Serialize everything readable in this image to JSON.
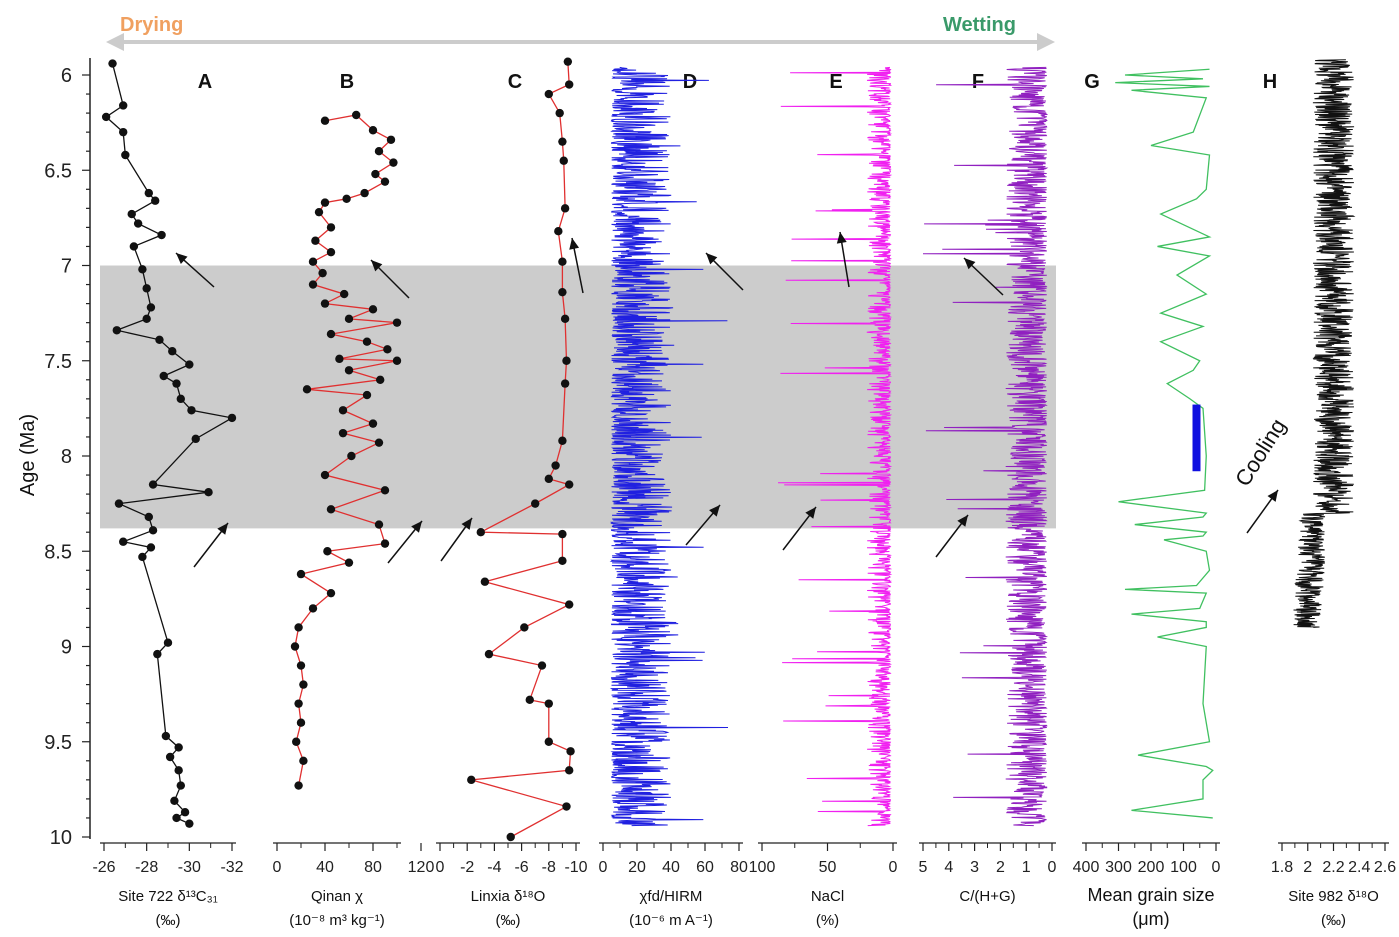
{
  "banner": {
    "left_label": "Drying",
    "right_label": "Wetting",
    "left_color": "#f0a060",
    "right_color": "#3a9a6a",
    "arrow_color": "#cccccc"
  },
  "age_axis": {
    "label": "Age (Ma)",
    "range": [
      5.9,
      10.0
    ],
    "ticks": [
      "6",
      "6.5",
      "7",
      "7.5",
      "8",
      "8.5",
      "9",
      "9.5",
      "10"
    ],
    "tick_values": [
      6,
      6.5,
      7,
      7.5,
      8,
      8.5,
      9,
      9.5,
      10
    ]
  },
  "shaded_interval": {
    "from": 7.0,
    "to": 8.38,
    "color": "#cccccc"
  },
  "chart_data": [
    {
      "id": "A",
      "type": "line",
      "letter": "A",
      "xlabel_line1": "Site 722 δ¹³C₃₁",
      "xlabel_line2": "(‰)",
      "xlim": [
        -26,
        -32
      ],
      "tick_labels": [
        "-26",
        "-28",
        "-30",
        "-32"
      ],
      "tick_values": [
        -26,
        -28,
        -30,
        -32
      ],
      "color": "#111111",
      "line_color": "#111111",
      "markers": true,
      "series": [
        {
          "x": -26.4,
          "y": 5.94
        },
        {
          "x": -26.9,
          "y": 6.16
        },
        {
          "x": -26.1,
          "y": 6.22
        },
        {
          "x": -26.9,
          "y": 6.3
        },
        {
          "x": -27.0,
          "y": 6.42
        },
        {
          "x": -28.1,
          "y": 6.62
        },
        {
          "x": -28.4,
          "y": 6.66
        },
        {
          "x": -27.3,
          "y": 6.73
        },
        {
          "x": -27.6,
          "y": 6.78
        },
        {
          "x": -28.7,
          "y": 6.84
        },
        {
          "x": -27.4,
          "y": 6.9
        },
        {
          "x": -27.8,
          "y": 7.02
        },
        {
          "x": -28.0,
          "y": 7.12
        },
        {
          "x": -28.2,
          "y": 7.22
        },
        {
          "x": -28.0,
          "y": 7.28
        },
        {
          "x": -26.6,
          "y": 7.34
        },
        {
          "x": -28.6,
          "y": 7.39
        },
        {
          "x": -29.2,
          "y": 7.45
        },
        {
          "x": -30.0,
          "y": 7.52
        },
        {
          "x": -28.8,
          "y": 7.58
        },
        {
          "x": -29.4,
          "y": 7.62
        },
        {
          "x": -29.6,
          "y": 7.7
        },
        {
          "x": -30.1,
          "y": 7.76
        },
        {
          "x": -32.0,
          "y": 7.8
        },
        {
          "x": -30.3,
          "y": 7.91
        },
        {
          "x": -28.3,
          "y": 8.15
        },
        {
          "x": -30.9,
          "y": 8.19
        },
        {
          "x": -26.7,
          "y": 8.25
        },
        {
          "x": -28.1,
          "y": 8.32
        },
        {
          "x": -28.3,
          "y": 8.39
        },
        {
          "x": -26.9,
          "y": 8.45
        },
        {
          "x": -28.2,
          "y": 8.48
        },
        {
          "x": -27.8,
          "y": 8.53
        },
        {
          "x": -29.0,
          "y": 8.98
        },
        {
          "x": -28.5,
          "y": 9.04
        },
        {
          "x": -28.9,
          "y": 9.47
        },
        {
          "x": -29.5,
          "y": 9.53
        },
        {
          "x": -29.1,
          "y": 9.58
        },
        {
          "x": -29.5,
          "y": 9.65
        },
        {
          "x": -29.6,
          "y": 9.73
        },
        {
          "x": -29.3,
          "y": 9.81
        },
        {
          "x": -29.8,
          "y": 9.87
        },
        {
          "x": -29.4,
          "y": 9.9
        },
        {
          "x": -30.0,
          "y": 9.93
        }
      ]
    },
    {
      "id": "B",
      "type": "line",
      "letter": "B",
      "xlabel_line1": "Qinan χ",
      "xlabel_line2": "(10⁻⁸ m³ kg⁻¹)",
      "xlim": [
        0,
        100
      ],
      "tick_labels": [
        "0",
        "40",
        "80",
        "120"
      ],
      "tick_values": [
        0,
        40,
        80,
        120
      ],
      "color": "#111111",
      "line_color": "#e03030",
      "markers": true,
      "series": [
        {
          "x": 40,
          "y": 6.24
        },
        {
          "x": 66,
          "y": 6.21
        },
        {
          "x": 80,
          "y": 6.29
        },
        {
          "x": 95,
          "y": 6.34
        },
        {
          "x": 85,
          "y": 6.4
        },
        {
          "x": 97,
          "y": 6.46
        },
        {
          "x": 82,
          "y": 6.52
        },
        {
          "x": 90,
          "y": 6.56
        },
        {
          "x": 73,
          "y": 6.62
        },
        {
          "x": 58,
          "y": 6.65
        },
        {
          "x": 40,
          "y": 6.67
        },
        {
          "x": 35,
          "y": 6.72
        },
        {
          "x": 45,
          "y": 6.8
        },
        {
          "x": 32,
          "y": 6.87
        },
        {
          "x": 45,
          "y": 6.93
        },
        {
          "x": 30,
          "y": 6.98
        },
        {
          "x": 38,
          "y": 7.04
        },
        {
          "x": 30,
          "y": 7.1
        },
        {
          "x": 56,
          "y": 7.15
        },
        {
          "x": 40,
          "y": 7.2
        },
        {
          "x": 80,
          "y": 7.23
        },
        {
          "x": 60,
          "y": 7.28
        },
        {
          "x": 100,
          "y": 7.3
        },
        {
          "x": 45,
          "y": 7.36
        },
        {
          "x": 75,
          "y": 7.4
        },
        {
          "x": 92,
          "y": 7.44
        },
        {
          "x": 52,
          "y": 7.49
        },
        {
          "x": 100,
          "y": 7.5
        },
        {
          "x": 60,
          "y": 7.55
        },
        {
          "x": 86,
          "y": 7.6
        },
        {
          "x": 25,
          "y": 7.65
        },
        {
          "x": 75,
          "y": 7.68
        },
        {
          "x": 55,
          "y": 7.76
        },
        {
          "x": 80,
          "y": 7.83
        },
        {
          "x": 55,
          "y": 7.88
        },
        {
          "x": 85,
          "y": 7.93
        },
        {
          "x": 62,
          "y": 8.0
        },
        {
          "x": 40,
          "y": 8.1
        },
        {
          "x": 90,
          "y": 8.18
        },
        {
          "x": 45,
          "y": 8.28
        },
        {
          "x": 85,
          "y": 8.36
        },
        {
          "x": 90,
          "y": 8.46
        },
        {
          "x": 42,
          "y": 8.5
        },
        {
          "x": 60,
          "y": 8.56
        },
        {
          "x": 20,
          "y": 8.62
        },
        {
          "x": 45,
          "y": 8.72
        },
        {
          "x": 30,
          "y": 8.8
        },
        {
          "x": 18,
          "y": 8.9
        },
        {
          "x": 15,
          "y": 9.0
        },
        {
          "x": 20,
          "y": 9.1
        },
        {
          "x": 22,
          "y": 9.2
        },
        {
          "x": 18,
          "y": 9.3
        },
        {
          "x": 20,
          "y": 9.4
        },
        {
          "x": 16,
          "y": 9.5
        },
        {
          "x": 22,
          "y": 9.6
        },
        {
          "x": 18,
          "y": 9.73
        }
      ]
    },
    {
      "id": "C",
      "type": "line",
      "letter": "C",
      "xlabel_line1": "Linxia δ¹⁸O",
      "xlabel_line2": "(‰)",
      "xlim": [
        0,
        -10
      ],
      "tick_labels": [
        "0",
        "-2",
        "-4",
        "-6",
        "-8",
        "-10"
      ],
      "tick_values": [
        0,
        -2,
        -4,
        -6,
        -8,
        -10
      ],
      "color": "#111111",
      "line_color": "#e03030",
      "markers": true,
      "series": [
        {
          "x": -9.4,
          "y": 5.93
        },
        {
          "x": -9.5,
          "y": 6.05
        },
        {
          "x": -8.0,
          "y": 6.1
        },
        {
          "x": -8.8,
          "y": 6.2
        },
        {
          "x": -9.0,
          "y": 6.35
        },
        {
          "x": -9.1,
          "y": 6.45
        },
        {
          "x": -9.2,
          "y": 6.7
        },
        {
          "x": -8.7,
          "y": 6.82
        },
        {
          "x": -9.0,
          "y": 6.98
        },
        {
          "x": -9.0,
          "y": 7.14
        },
        {
          "x": -9.2,
          "y": 7.28
        },
        {
          "x": -9.3,
          "y": 7.5
        },
        {
          "x": -9.2,
          "y": 7.62
        },
        {
          "x": -9.0,
          "y": 7.92
        },
        {
          "x": -8.5,
          "y": 8.05
        },
        {
          "x": -8.0,
          "y": 8.12
        },
        {
          "x": -9.5,
          "y": 8.15
        },
        {
          "x": -7.0,
          "y": 8.25
        },
        {
          "x": -3.0,
          "y": 8.4
        },
        {
          "x": -9.0,
          "y": 8.41
        },
        {
          "x": -9.0,
          "y": 8.55
        },
        {
          "x": -3.3,
          "y": 8.66
        },
        {
          "x": -9.5,
          "y": 8.78
        },
        {
          "x": -6.2,
          "y": 8.9
        },
        {
          "x": -3.6,
          "y": 9.04
        },
        {
          "x": -7.5,
          "y": 9.1
        },
        {
          "x": -6.6,
          "y": 9.28
        },
        {
          "x": -8.0,
          "y": 9.3
        },
        {
          "x": -8.0,
          "y": 9.5
        },
        {
          "x": -9.6,
          "y": 9.55
        },
        {
          "x": -9.5,
          "y": 9.65
        },
        {
          "x": -2.3,
          "y": 9.7
        },
        {
          "x": -9.3,
          "y": 9.84
        },
        {
          "x": -5.2,
          "y": 10.0
        }
      ]
    },
    {
      "id": "D",
      "type": "line",
      "letter": "D",
      "xlabel_line1": "χfd/HIRM",
      "xlabel_line2": "(10⁻⁶ m A⁻¹)",
      "xlim": [
        0,
        80
      ],
      "tick_labels": [
        "0",
        "20",
        "40",
        "60",
        "80"
      ],
      "tick_values": [
        0,
        20,
        40,
        60,
        80
      ],
      "color": "#2020e0",
      "style": "dense",
      "series": []
    },
    {
      "id": "E",
      "type": "line",
      "letter": "E",
      "xlabel_line1": "NaCl",
      "xlabel_line2": "(%)",
      "xlim": [
        100,
        0
      ],
      "tick_labels": [
        "100",
        "50",
        "0"
      ],
      "tick_values": [
        100,
        50,
        0
      ],
      "color": "#f020f0",
      "style": "dense",
      "series": []
    },
    {
      "id": "F",
      "type": "line",
      "letter": "F",
      "xlabel_line1": "C/(H+G)",
      "xlabel_line2": "",
      "xlim": [
        5,
        0
      ],
      "tick_labels": [
        "5",
        "4",
        "3",
        "2",
        "1",
        "0"
      ],
      "tick_values": [
        5,
        4,
        3,
        2,
        1,
        0
      ],
      "color": "#9020c0",
      "style": "dense",
      "series": []
    },
    {
      "id": "G",
      "type": "line",
      "letter": "G",
      "xlabel_line1": "Mean grain size",
      "xlabel_line2": "(μm)",
      "xlim": [
        400,
        0
      ],
      "tick_labels": [
        "400",
        "300",
        "200",
        "100",
        "0"
      ],
      "tick_values": [
        400,
        300,
        200,
        100,
        0
      ],
      "color": "#40c060",
      "bar_color": "#1010e0",
      "bar": {
        "from": 7.73,
        "to": 8.08,
        "x": 60
      },
      "series": [
        {
          "x": 20,
          "y": 5.97
        },
        {
          "x": 280,
          "y": 6.0
        },
        {
          "x": 40,
          "y": 6.02
        },
        {
          "x": 310,
          "y": 6.04
        },
        {
          "x": 20,
          "y": 6.06
        },
        {
          "x": 260,
          "y": 6.08
        },
        {
          "x": 30,
          "y": 6.12
        },
        {
          "x": 70,
          "y": 6.3
        },
        {
          "x": 200,
          "y": 6.37
        },
        {
          "x": 20,
          "y": 6.42
        },
        {
          "x": 30,
          "y": 6.6
        },
        {
          "x": 60,
          "y": 6.65
        },
        {
          "x": 170,
          "y": 6.73
        },
        {
          "x": 20,
          "y": 6.85
        },
        {
          "x": 180,
          "y": 6.9
        },
        {
          "x": 20,
          "y": 6.95
        },
        {
          "x": 120,
          "y": 7.05
        },
        {
          "x": 30,
          "y": 7.15
        },
        {
          "x": 170,
          "y": 7.25
        },
        {
          "x": 40,
          "y": 7.32
        },
        {
          "x": 170,
          "y": 7.4
        },
        {
          "x": 50,
          "y": 7.5
        },
        {
          "x": 70,
          "y": 7.55
        },
        {
          "x": 150,
          "y": 7.62
        },
        {
          "x": 80,
          "y": 7.7
        },
        {
          "x": 40,
          "y": 7.75
        },
        {
          "x": 30,
          "y": 8.0
        },
        {
          "x": 35,
          "y": 8.18
        },
        {
          "x": 300,
          "y": 8.24
        },
        {
          "x": 30,
          "y": 8.3
        },
        {
          "x": 40,
          "y": 8.32
        },
        {
          "x": 250,
          "y": 8.36
        },
        {
          "x": 30,
          "y": 8.4
        },
        {
          "x": 40,
          "y": 8.42
        },
        {
          "x": 160,
          "y": 8.44
        },
        {
          "x": 30,
          "y": 8.5
        },
        {
          "x": 20,
          "y": 8.6
        },
        {
          "x": 60,
          "y": 8.68
        },
        {
          "x": 280,
          "y": 8.7
        },
        {
          "x": 30,
          "y": 8.72
        },
        {
          "x": 50,
          "y": 8.8
        },
        {
          "x": 260,
          "y": 8.83
        },
        {
          "x": 30,
          "y": 8.87
        },
        {
          "x": 30,
          "y": 8.9
        },
        {
          "x": 180,
          "y": 8.95
        },
        {
          "x": 30,
          "y": 9.0
        },
        {
          "x": 40,
          "y": 9.3
        },
        {
          "x": 20,
          "y": 9.5
        },
        {
          "x": 240,
          "y": 9.57
        },
        {
          "x": 30,
          "y": 9.63
        },
        {
          "x": 10,
          "y": 9.65
        },
        {
          "x": 40,
          "y": 9.7
        },
        {
          "x": 40,
          "y": 9.8
        },
        {
          "x": 260,
          "y": 9.86
        },
        {
          "x": 10,
          "y": 9.9
        }
      ]
    },
    {
      "id": "H",
      "type": "line",
      "letter": "H",
      "xlabel_line1": "Site 982 δ¹⁸O",
      "xlabel_line2": "(‰)",
      "xlim": [
        1.8,
        2.6
      ],
      "tick_labels": [
        "1.8",
        "2",
        "2.2",
        "2.4",
        "2.6"
      ],
      "tick_values": [
        1.8,
        2.0,
        2.2,
        2.4,
        2.6
      ],
      "color": "#111111",
      "annotation": "Cooling",
      "style": "dense",
      "series": []
    }
  ]
}
